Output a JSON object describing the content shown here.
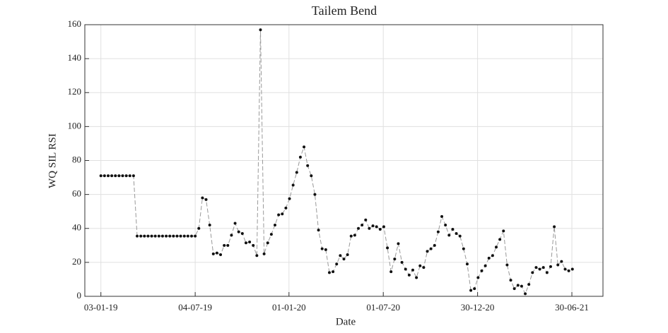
{
  "chart_data": {
    "type": "line",
    "title": "Tailem Bend",
    "xlabel": "Date",
    "ylabel": "WQ SIL RSI",
    "x": [
      "2019-01-03",
      "2019-01-10",
      "2019-01-17",
      "2019-01-24",
      "2019-01-31",
      "2019-02-07",
      "2019-02-14",
      "2019-02-21",
      "2019-02-28",
      "2019-03-07",
      "2019-03-14",
      "2019-03-21",
      "2019-03-28",
      "2019-04-04",
      "2019-04-11",
      "2019-04-18",
      "2019-04-25",
      "2019-05-02",
      "2019-05-09",
      "2019-05-16",
      "2019-05-23",
      "2019-05-30",
      "2019-06-06",
      "2019-06-13",
      "2019-06-20",
      "2019-06-27",
      "2019-07-04",
      "2019-07-11",
      "2019-07-18",
      "2019-07-25",
      "2019-08-01",
      "2019-08-08",
      "2019-08-15",
      "2019-08-22",
      "2019-08-29",
      "2019-09-05",
      "2019-09-12",
      "2019-09-19",
      "2019-09-26",
      "2019-10-03",
      "2019-10-10",
      "2019-10-17",
      "2019-10-24",
      "2019-10-31",
      "2019-11-07",
      "2019-11-14",
      "2019-11-21",
      "2019-11-28",
      "2019-12-05",
      "2019-12-12",
      "2019-12-19",
      "2019-12-26",
      "2020-01-02",
      "2020-01-09",
      "2020-01-16",
      "2020-01-23",
      "2020-01-30",
      "2020-02-06",
      "2020-02-13",
      "2020-02-20",
      "2020-02-27",
      "2020-03-05",
      "2020-03-12",
      "2020-03-19",
      "2020-03-26",
      "2020-04-02",
      "2020-04-09",
      "2020-04-16",
      "2020-04-23",
      "2020-04-30",
      "2020-05-07",
      "2020-05-14",
      "2020-05-21",
      "2020-05-28",
      "2020-06-04",
      "2020-06-11",
      "2020-06-18",
      "2020-06-25",
      "2020-07-02",
      "2020-07-09",
      "2020-07-16",
      "2020-07-23",
      "2020-07-30",
      "2020-08-06",
      "2020-08-13",
      "2020-08-20",
      "2020-08-27",
      "2020-09-03",
      "2020-09-10",
      "2020-09-17",
      "2020-09-24",
      "2020-10-01",
      "2020-10-08",
      "2020-10-15",
      "2020-10-22",
      "2020-10-29",
      "2020-11-05",
      "2020-11-12",
      "2020-11-19",
      "2020-11-26",
      "2020-12-03",
      "2020-12-10",
      "2020-12-17",
      "2020-12-24",
      "2020-12-31",
      "2021-01-07",
      "2021-01-14",
      "2021-01-21",
      "2021-01-28",
      "2021-02-04",
      "2021-02-11",
      "2021-02-18",
      "2021-02-25",
      "2021-03-04",
      "2021-03-11",
      "2021-03-18",
      "2021-03-25",
      "2021-04-01",
      "2021-04-08",
      "2021-04-15",
      "2021-04-22",
      "2021-04-29",
      "2021-05-06",
      "2021-05-13",
      "2021-05-20",
      "2021-05-27",
      "2021-06-03",
      "2021-06-10",
      "2021-06-17",
      "2021-06-24",
      "2021-07-01"
    ],
    "values": [
      71,
      71,
      71,
      71,
      71,
      71,
      71,
      71,
      71,
      71,
      35.5,
      35.5,
      35.5,
      35.5,
      35.5,
      35.5,
      35.5,
      35.5,
      35.5,
      35.5,
      35.5,
      35.5,
      35.5,
      35.5,
      35.5,
      35.5,
      35.5,
      40,
      58,
      57,
      42,
      25,
      25.5,
      24.5,
      30,
      30,
      36,
      43,
      38,
      37,
      31.5,
      32,
      30,
      24,
      157,
      25,
      31.5,
      36.5,
      42,
      48,
      48.5,
      52,
      57.5,
      65.5,
      73,
      82,
      88,
      77,
      71,
      60,
      39,
      28,
      27.5,
      14,
      14.5,
      19,
      24,
      22,
      24.5,
      35.5,
      36,
      40,
      42,
      45,
      40,
      41.5,
      41,
      39.5,
      41,
      28.5,
      14.5,
      22,
      31,
      20,
      16,
      12.5,
      15.5,
      11,
      18,
      17,
      26.5,
      28,
      30,
      38,
      47,
      42,
      36,
      39.5,
      37,
      35.5,
      28,
      19,
      3.5,
      4.5,
      11,
      15,
      18,
      22.5,
      24,
      29,
      33.5,
      38.5,
      18.5,
      9.5,
      4.5,
      6.5,
      6,
      1.5,
      7,
      14,
      17,
      16,
      17,
      14,
      17.5,
      41,
      18.5,
      20.5,
      16,
      15,
      16
    ],
    "color": "#999999",
    "marker_color": "#111111",
    "xlim": [
      "2018-12-03",
      "2021-08-29"
    ],
    "xticks": [
      {
        "value": "2019-01-03",
        "label": "03-01-19"
      },
      {
        "value": "2019-07-04",
        "label": "04-07-19"
      },
      {
        "value": "2020-01-01",
        "label": "01-01-20"
      },
      {
        "value": "2020-07-01",
        "label": "01-07-20"
      },
      {
        "value": "2020-12-30",
        "label": "30-12-20"
      },
      {
        "value": "2021-06-30",
        "label": "30-06-21"
      }
    ],
    "ylim": [
      0,
      160
    ],
    "yticks": [
      0,
      20,
      40,
      60,
      80,
      100,
      120,
      140,
      160
    ],
    "grid": true
  }
}
